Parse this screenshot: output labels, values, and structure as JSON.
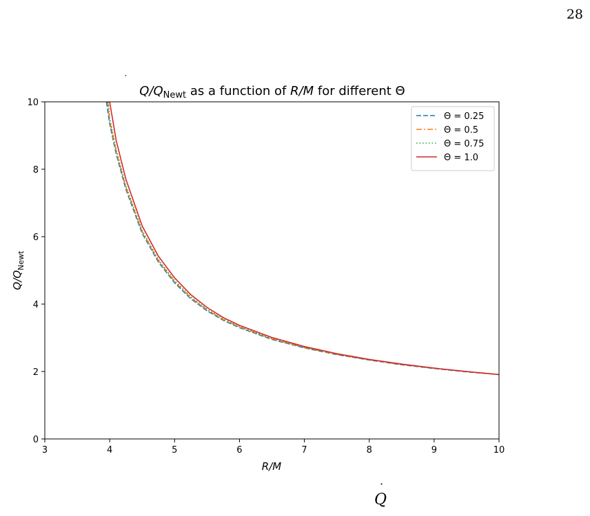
{
  "page": {
    "number": "28",
    "caption_fragment": "Q",
    "caption_dot": "˙"
  },
  "chart_data": {
    "type": "line",
    "title": {
      "lead": "Q",
      "sep": "/Q",
      "sub": "Newt",
      "rest": " as a function of ",
      "var": "R/M",
      "rest2": " for different ",
      "greek": "Θ"
    },
    "xlabel": "R/M",
    "ylabel": {
      "main": "Q/Q",
      "sub": "Newt"
    },
    "xlim": [
      3,
      10
    ],
    "ylim": [
      0,
      10
    ],
    "xticks": [
      3,
      4,
      5,
      6,
      7,
      8,
      9,
      10
    ],
    "yticks": [
      0,
      2,
      4,
      6,
      8,
      10
    ],
    "grid": false,
    "legend_position": "top-right",
    "series": [
      {
        "name": "Θ = 0.25",
        "color": "#1f77b4",
        "dash": "dashed",
        "x": [
          3.95,
          4.0,
          4.1,
          4.25,
          4.5,
          4.75,
          5.0,
          5.25,
          5.5,
          5.75,
          6.0,
          6.5,
          7.0,
          7.5,
          8.0,
          8.5,
          9.0,
          9.5,
          10.0
        ],
        "y": [
          10.0,
          9.35,
          8.45,
          7.4,
          6.1,
          5.25,
          4.63,
          4.16,
          3.8,
          3.52,
          3.3,
          2.95,
          2.7,
          2.5,
          2.34,
          2.2,
          2.09,
          1.99,
          1.91
        ]
      },
      {
        "name": "Θ = 0.5",
        "color": "#ff7f0e",
        "dash": "dashdot",
        "x": [
          3.97,
          4.0,
          4.1,
          4.25,
          4.5,
          4.75,
          5.0,
          5.25,
          5.5,
          5.75,
          6.0,
          6.5,
          7.0,
          7.5,
          8.0,
          8.5,
          9.0,
          9.5,
          10.0
        ],
        "y": [
          10.0,
          9.45,
          8.52,
          7.46,
          6.15,
          5.29,
          4.67,
          4.19,
          3.83,
          3.54,
          3.32,
          2.97,
          2.71,
          2.51,
          2.35,
          2.21,
          2.1,
          2.0,
          1.91
        ]
      },
      {
        "name": "Θ = 0.75",
        "color": "#2ca02c",
        "dash": "dotted",
        "x": [
          3.98,
          4.0,
          4.1,
          4.25,
          4.5,
          4.75,
          5.0,
          5.25,
          5.5,
          5.75,
          6.0,
          6.5,
          7.0,
          7.5,
          8.0,
          8.5,
          9.0,
          9.5,
          10.0
        ],
        "y": [
          10.0,
          9.52,
          8.58,
          7.51,
          6.19,
          5.32,
          4.7,
          4.22,
          3.85,
          3.56,
          3.34,
          2.98,
          2.72,
          2.52,
          2.35,
          2.21,
          2.1,
          2.0,
          1.91
        ]
      },
      {
        "name": "Θ = 1.0",
        "color": "#d62728",
        "dash": "solid",
        "x": [
          4.0,
          4.1,
          4.25,
          4.5,
          4.75,
          5.0,
          5.25,
          5.5,
          5.75,
          6.0,
          6.5,
          7.0,
          7.5,
          8.0,
          8.5,
          9.0,
          9.5,
          10.0
        ],
        "y": [
          10.0,
          8.85,
          7.7,
          6.32,
          5.42,
          4.78,
          4.28,
          3.9,
          3.6,
          3.37,
          3.01,
          2.74,
          2.53,
          2.36,
          2.22,
          2.1,
          2.0,
          1.91
        ]
      }
    ]
  }
}
